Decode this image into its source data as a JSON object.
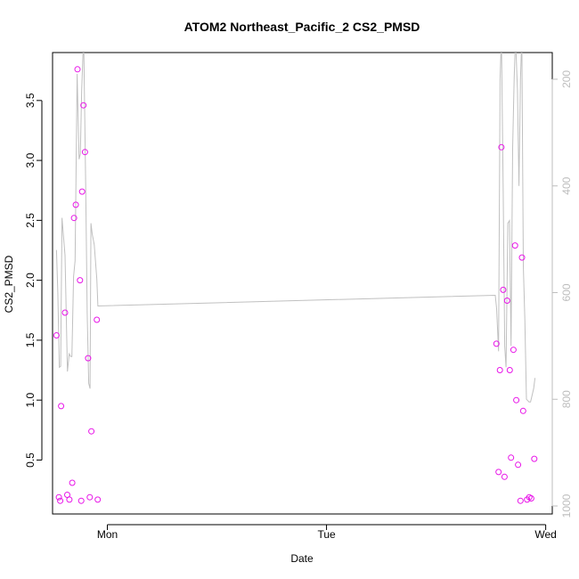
{
  "chart_data": {
    "type": "scatter",
    "title": "ATOM2 Northeast_Pacific_2 CS2_PMSD",
    "xlabel": "Date",
    "ylabel": "CS2_PMSD",
    "x_units": "days since Sunday 00:00",
    "x_range": [
      0.75,
      3.03
    ],
    "x_ticks": [
      {
        "value": 1,
        "label": "Mon"
      },
      {
        "value": 2,
        "label": "Tue"
      },
      {
        "value": 3,
        "label": "Wed"
      }
    ],
    "ylim": [
      0.05,
      3.9
    ],
    "y_ticks": [
      {
        "value": 0.5,
        "label": "0.5"
      },
      {
        "value": 1.0,
        "label": "1.0"
      },
      {
        "value": 1.5,
        "label": "1.5"
      },
      {
        "value": 2.0,
        "label": "2.0"
      },
      {
        "value": 2.5,
        "label": "2.5"
      },
      {
        "value": 3.0,
        "label": "3.0"
      },
      {
        "value": 3.5,
        "label": "3.5"
      }
    ],
    "y2_range_reversed": [
      1015,
      150
    ],
    "y2_ticks": [
      {
        "value": 200,
        "label": "200"
      },
      {
        "value": 400,
        "label": "400"
      },
      {
        "value": 600,
        "label": "600"
      },
      {
        "value": 800,
        "label": "800"
      },
      {
        "value": 1000,
        "label": "1000"
      }
    ],
    "grid": false,
    "series": [
      {
        "kind": "points",
        "color": "#e815e8",
        "points": [
          [
            0.768,
            1.54
          ],
          [
            0.779,
            0.19
          ],
          [
            0.785,
            0.16
          ],
          [
            0.789,
            0.95
          ],
          [
            0.807,
            1.73
          ],
          [
            0.817,
            0.21
          ],
          [
            0.827,
            0.17
          ],
          [
            0.84,
            0.31
          ],
          [
            0.848,
            2.52
          ],
          [
            0.856,
            2.63
          ],
          [
            0.864,
            3.76
          ],
          [
            0.875,
            2.0
          ],
          [
            0.881,
            0.16
          ],
          [
            0.885,
            2.74
          ],
          [
            0.891,
            3.46
          ],
          [
            0.898,
            3.07
          ],
          [
            0.912,
            1.35
          ],
          [
            0.92,
            0.19
          ],
          [
            0.927,
            0.74
          ],
          [
            0.956,
            0.17
          ],
          [
            0.952,
            1.67
          ],
          [
            2.775,
            1.47
          ],
          [
            2.785,
            0.4
          ],
          [
            2.791,
            1.25
          ],
          [
            2.798,
            3.11
          ],
          [
            2.806,
            1.92
          ],
          [
            2.812,
            0.36
          ],
          [
            2.824,
            1.83
          ],
          [
            2.836,
            1.25
          ],
          [
            2.842,
            0.52
          ],
          [
            2.853,
            1.42
          ],
          [
            2.86,
            2.29
          ],
          [
            2.866,
            1.0
          ],
          [
            2.874,
            0.46
          ],
          [
            2.885,
            0.16
          ],
          [
            2.892,
            2.19
          ],
          [
            2.897,
            0.91
          ],
          [
            2.915,
            0.17
          ],
          [
            2.925,
            0.19
          ],
          [
            2.934,
            0.18
          ],
          [
            2.948,
            0.51
          ]
        ]
      },
      {
        "kind": "line",
        "color": "#c0c0c0",
        "axis": "right",
        "points": [
          [
            0.768,
            520
          ],
          [
            0.774,
            600
          ],
          [
            0.781,
            740
          ],
          [
            0.787,
            738
          ],
          [
            0.793,
            460
          ],
          [
            0.807,
            530
          ],
          [
            0.818,
            748
          ],
          [
            0.826,
            715
          ],
          [
            0.833,
            720
          ],
          [
            0.838,
            720
          ],
          [
            0.846,
            570
          ],
          [
            0.853,
            540
          ],
          [
            0.862,
            190
          ],
          [
            0.871,
            350
          ],
          [
            0.877,
            340
          ],
          [
            0.883,
            220
          ],
          [
            0.892,
            120
          ],
          [
            0.901,
            400
          ],
          [
            0.908,
            640
          ],
          [
            0.915,
            770
          ],
          [
            0.921,
            780
          ],
          [
            0.925,
            470
          ],
          [
            0.931,
            490
          ],
          [
            0.94,
            510
          ],
          [
            0.952,
            575
          ],
          [
            0.957,
            625
          ],
          [
            2.77,
            605
          ],
          [
            2.776,
            630
          ],
          [
            2.785,
            710
          ],
          [
            2.792,
            200
          ],
          [
            2.798,
            120
          ],
          [
            2.806,
            410
          ],
          [
            2.813,
            700
          ],
          [
            2.819,
            740
          ],
          [
            2.827,
            470
          ],
          [
            2.835,
            465
          ],
          [
            2.842,
            700
          ],
          [
            2.849,
            330
          ],
          [
            2.856,
            200
          ],
          [
            2.862,
            120
          ],
          [
            2.871,
            220
          ],
          [
            2.878,
            400
          ],
          [
            2.885,
            200
          ],
          [
            2.891,
            120
          ],
          [
            2.898,
            550
          ],
          [
            2.905,
            650
          ],
          [
            2.912,
            800
          ],
          [
            2.924,
            805
          ],
          [
            2.931,
            805
          ],
          [
            2.945,
            780
          ],
          [
            2.951,
            760
          ]
        ]
      }
    ]
  }
}
